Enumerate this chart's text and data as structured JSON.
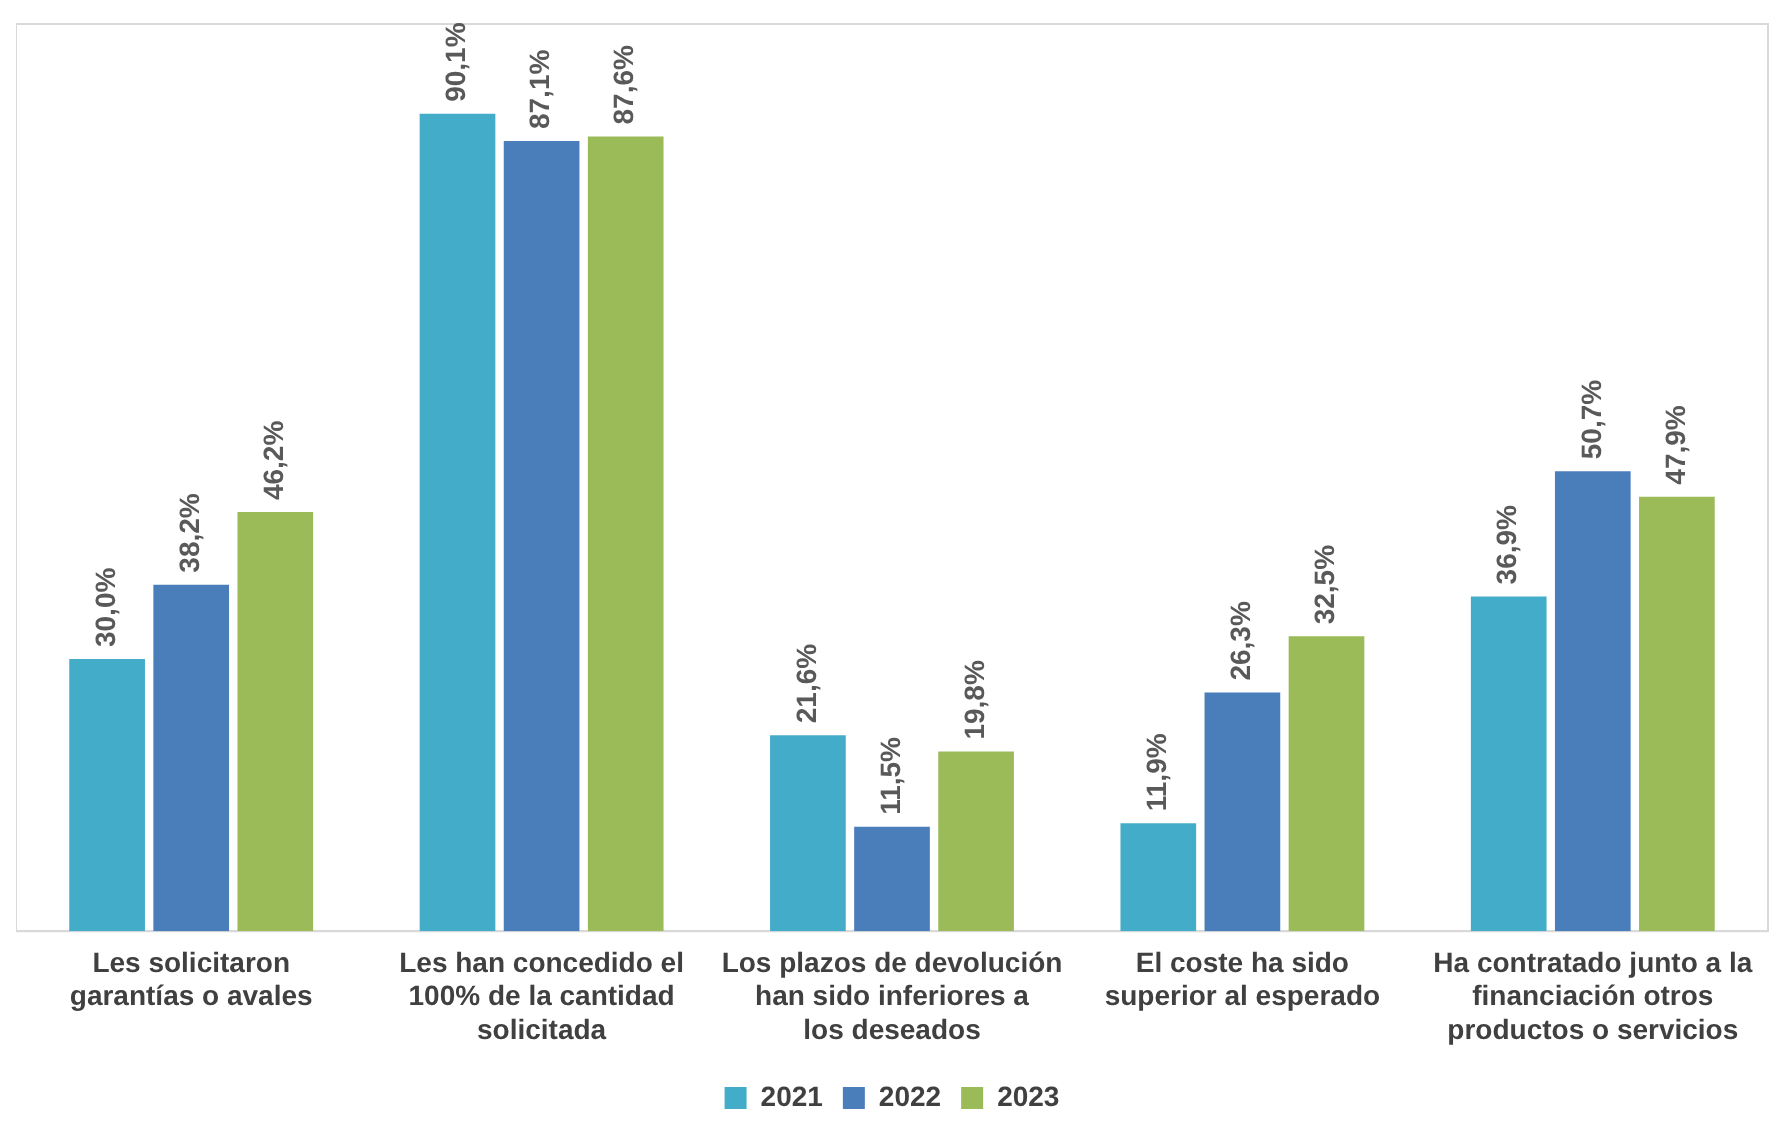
{
  "chart_data": {
    "type": "bar",
    "categories": [
      "Les solicitaron garantías o avales",
      "Les han concedido el 100% de la cantidad solicitada",
      "Los plazos de devolución han sido inferiores a los deseados",
      "El coste ha sido superior al esperado",
      "Ha contratado junto a la financiación otros productos o servicios"
    ],
    "series": [
      {
        "name": "2021",
        "color": "#43acc8",
        "values": [
          30.0,
          90.1,
          21.6,
          11.9,
          36.9
        ],
        "value_labels": [
          "30,0%",
          "90,1%",
          "21,6%",
          "11,9%",
          "36,9%"
        ]
      },
      {
        "name": "2022",
        "color": "#4a7ebb",
        "values": [
          38.2,
          87.1,
          11.5,
          26.3,
          50.7
        ],
        "value_labels": [
          "38,2%",
          "87,1%",
          "11,5%",
          "26,3%",
          "50,7%"
        ]
      },
      {
        "name": "2023",
        "color": "#9bbb59",
        "values": [
          46.2,
          87.6,
          19.8,
          32.5,
          47.9
        ],
        "value_labels": [
          "46,2%",
          "87,6%",
          "19,8%",
          "32,5%",
          "47,9%"
        ]
      }
    ],
    "ylim": [
      0,
      100
    ],
    "tick_labels": "x",
    "grid": false,
    "legend": "bottom"
  }
}
